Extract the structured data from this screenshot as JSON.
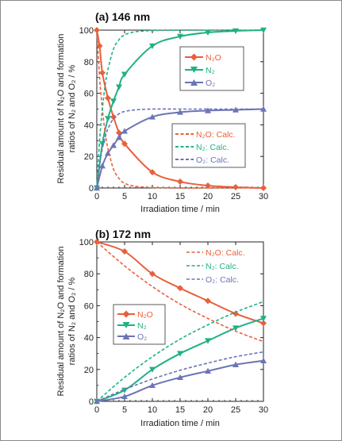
{
  "colors": {
    "n2o": "#e8603c",
    "n2": "#1fb185",
    "o2": "#6b74b5"
  },
  "chart_data": [
    {
      "type": "line",
      "title": "(a) 146 nm",
      "xlabel": "Irradiation time / min",
      "ylabel_line1": "Residual amount of N₂O and formation",
      "ylabel_line2": "ratios of N₂ and O₂ / %",
      "xlim": [
        0,
        30
      ],
      "ylim": [
        0,
        100
      ],
      "xticks": [
        0,
        5,
        10,
        15,
        20,
        25,
        30
      ],
      "yticks": [
        0,
        20,
        40,
        60,
        80,
        100
      ],
      "legend_measured": [
        "N₂O",
        "N₂",
        "O₂"
      ],
      "legend_calc": [
        "N₂O: Calc.",
        "N₂: Calc.",
        "O₂: Calc."
      ],
      "series": [
        {
          "name": "N₂O",
          "key": "n2o",
          "marker": "diamond",
          "x": [
            0,
            0.5,
            1,
            2,
            3,
            4,
            5,
            10,
            15,
            20,
            25,
            30
          ],
          "y": [
            100,
            90,
            73,
            57,
            45,
            35,
            28,
            10,
            4,
            1.5,
            0.5,
            0
          ]
        },
        {
          "name": "N₂",
          "key": "n2",
          "marker": "tri-down",
          "x": [
            0,
            1,
            2,
            3,
            4,
            5,
            10,
            15,
            20,
            25,
            30
          ],
          "y": [
            0,
            28,
            44,
            55,
            64,
            72,
            90,
            96,
            98.5,
            99.5,
            100
          ]
        },
        {
          "name": "O₂",
          "key": "o2",
          "marker": "tri-up",
          "x": [
            0,
            1,
            2,
            3,
            4,
            5,
            10,
            15,
            20,
            25,
            30
          ],
          "y": [
            0,
            14,
            22,
            27,
            32,
            36,
            45,
            48,
            49,
            49.5,
            50
          ]
        },
        {
          "name": "N₂O: Calc.",
          "key": "n2o",
          "dashed": true,
          "x": [
            0,
            0.5,
            1,
            1.5,
            2,
            3,
            4,
            5,
            7,
            10,
            15,
            20,
            30
          ],
          "y": [
            100,
            70,
            50,
            35,
            25,
            12,
            6,
            3,
            1,
            0.3,
            0,
            0,
            0
          ]
        },
        {
          "name": "N₂: Calc.",
          "key": "n2",
          "dashed": true,
          "x": [
            0,
            0.5,
            1,
            1.5,
            2,
            3,
            4,
            5,
            7,
            10,
            15,
            20,
            30
          ],
          "y": [
            0,
            30,
            50,
            65,
            75,
            88,
            94,
            97,
            99,
            99.7,
            100,
            100,
            100
          ]
        },
        {
          "name": "O₂: Calc.",
          "key": "o2",
          "dashed": true,
          "x": [
            0,
            0.5,
            1,
            1.5,
            2,
            3,
            4,
            5,
            7,
            10,
            15,
            20,
            30
          ],
          "y": [
            0,
            15,
            25,
            32,
            37.5,
            44,
            47,
            48.5,
            49.5,
            50,
            50,
            50,
            50
          ]
        }
      ]
    },
    {
      "type": "line",
      "title": "(b) 172 nm",
      "xlabel": "Irradiation time / min",
      "ylabel_line1": "Residual amount of N₂O and formation",
      "ylabel_line2": "ratios of N₂ and O₂ / %",
      "xlim": [
        0,
        30
      ],
      "ylim": [
        0,
        100
      ],
      "xticks": [
        0,
        5,
        10,
        15,
        20,
        25,
        30
      ],
      "yticks": [
        0,
        20,
        40,
        60,
        80,
        100
      ],
      "legend_measured": [
        "N₂O",
        "N₂",
        "O₂"
      ],
      "legend_calc": [
        "N₂O: Calc.",
        "N₂: Calc.",
        "O₂: Calc."
      ],
      "series": [
        {
          "name": "N₂O",
          "key": "n2o",
          "marker": "diamond",
          "x": [
            0,
            5,
            10,
            15,
            20,
            25,
            30
          ],
          "y": [
            100,
            94,
            80,
            71,
            63,
            55,
            49
          ]
        },
        {
          "name": "N₂",
          "key": "n2",
          "marker": "tri-down",
          "x": [
            0,
            5,
            10,
            15,
            20,
            25,
            30
          ],
          "y": [
            0,
            7,
            20,
            30,
            38,
            46,
            52
          ]
        },
        {
          "name": "O₂",
          "key": "o2",
          "marker": "tri-up",
          "x": [
            0,
            5,
            10,
            15,
            20,
            25,
            30
          ],
          "y": [
            0,
            3,
            10,
            15,
            19,
            23,
            25.5
          ]
        },
        {
          "name": "N₂O: Calc.",
          "key": "n2o",
          "dashed": true,
          "x": [
            0,
            5,
            10,
            15,
            20,
            25,
            30
          ],
          "y": [
            100,
            85,
            72,
            61,
            52,
            44,
            37.5
          ]
        },
        {
          "name": "N₂: Calc.",
          "key": "n2",
          "dashed": true,
          "x": [
            0,
            5,
            10,
            15,
            20,
            25,
            30
          ],
          "y": [
            0,
            15,
            28,
            39,
            48,
            56,
            62.5
          ]
        },
        {
          "name": "O₂: Calc.",
          "key": "o2",
          "dashed": true,
          "x": [
            0,
            5,
            10,
            15,
            20,
            25,
            30
          ],
          "y": [
            0,
            7.5,
            14,
            19.5,
            24,
            28,
            31
          ]
        }
      ]
    }
  ]
}
